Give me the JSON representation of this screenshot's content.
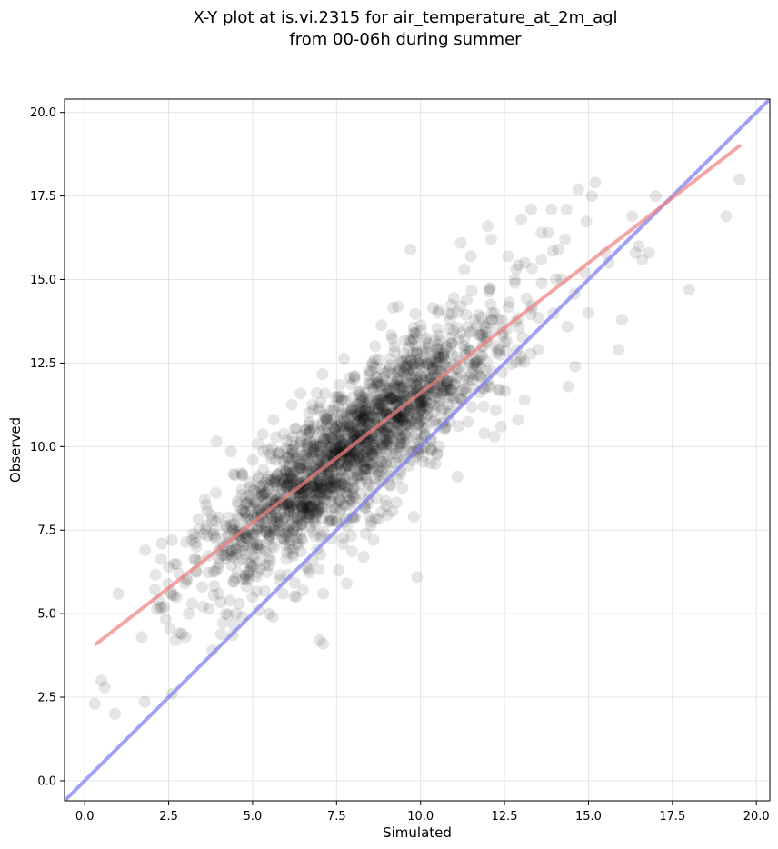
{
  "chart_data": {
    "type": "scatter",
    "title_lines": [
      "X-Y plot at is.vi.2315 for air_temperature_at_2m_agl",
      "from 00-06h during summer"
    ],
    "xlabel": "Simulated",
    "ylabel": "Observed",
    "xlim": [
      -0.6,
      20.4
    ],
    "ylim": [
      -0.6,
      20.4
    ],
    "x_ticks": [
      0.0,
      2.5,
      5.0,
      7.5,
      10.0,
      12.5,
      15.0,
      17.5,
      20.0
    ],
    "y_ticks": [
      0.0,
      2.5,
      5.0,
      7.5,
      10.0,
      12.5,
      15.0,
      17.5,
      20.0
    ],
    "x_tick_labels": [
      "0.0",
      "2.5",
      "5.0",
      "7.5",
      "10.0",
      "12.5",
      "15.0",
      "17.5",
      "20.0"
    ],
    "y_tick_labels": [
      "0.0",
      "2.5",
      "5.0",
      "7.5",
      "10.0",
      "12.5",
      "15.0",
      "17.5",
      "20.0"
    ],
    "grid": true,
    "point_color": "#000000",
    "point_opacity": 0.1,
    "fit_line": {
      "x": [
        0.35,
        19.5
      ],
      "y": [
        4.1,
        19.0
      ],
      "color": "#f08080"
    },
    "identity_line": {
      "x": [
        -0.6,
        20.4
      ],
      "y": [
        -0.6,
        20.4
      ],
      "color": "#8080f0"
    },
    "points": {
      "x": [
        0.3,
        0.5,
        0.6,
        0.9,
        1.0,
        1.7,
        1.8,
        2.2,
        2.3,
        2.5,
        2.6,
        2.7,
        2.8,
        2.9,
        3.0,
        3.1,
        3.2,
        3.2,
        3.3,
        3.8,
        4.0,
        4.0,
        4.2,
        4.4,
        4.6,
        4.7,
        5.0,
        5.2,
        5.3,
        5.5,
        5.6,
        5.8,
        5.9,
        6.2,
        6.3,
        6.5,
        6.6,
        7.0,
        7.1,
        7.1,
        7.8,
        8.3,
        8.6,
        9.7,
        9.9,
        10.3,
        10.5,
        10.7,
        11.1,
        11.2,
        11.3,
        11.5,
        11.9,
        12.0,
        12.1,
        12.2,
        12.4,
        12.6,
        12.9,
        13.0,
        13.1,
        13.1,
        13.3,
        13.5,
        13.6,
        13.8,
        13.9,
        14.1,
        14.3,
        14.4,
        14.6,
        14.7,
        15.0,
        15.1,
        15.2,
        15.6,
        15.9,
        16.0,
        16.3,
        16.4,
        16.5,
        16.6,
        16.8,
        17.0,
        18.0,
        19.1,
        19.5,
        2.6,
        9.8,
        7.1,
        3.5,
        3.3,
        4.7,
        6.8,
        8.9,
        10.2,
        12.2,
        14.9,
        15.5,
        11.2,
        12.8,
        13.6,
        9.5
      ],
      "y": [
        2.3,
        3.0,
        2.8,
        2.0,
        5.6,
        4.3,
        6.9,
        5.4,
        7.1,
        6.4,
        2.6,
        4.2,
        6.2,
        4.4,
        4.3,
        5.0,
        5.3,
        7.2,
        6.6,
        3.9,
        5.6,
        6.5,
        5.0,
        6.7,
        5.3,
        4.9,
        5.5,
        5.1,
        6.9,
        5.0,
        4.9,
        6.0,
        5.6,
        6.8,
        5.5,
        5.7,
        6.4,
        4.2,
        4.1,
        5.6,
        5.9,
        6.7,
        7.2,
        15.9,
        6.1,
        9.5,
        9.8,
        10.5,
        9.1,
        16.1,
        15.3,
        15.7,
        10.4,
        16.6,
        16.2,
        10.3,
        10.6,
        15.7,
        10.8,
        16.8,
        11.4,
        15.5,
        17.1,
        12.9,
        16.4,
        16.4,
        17.1,
        15.9,
        16.2,
        11.8,
        12.4,
        17.7,
        14.0,
        17.5,
        17.9,
        15.5,
        12.9,
        13.8,
        16.9,
        15.8,
        16.0,
        15.6,
        15.8,
        17.5,
        14.7,
        16.9,
        18.0,
        7.2,
        7.9,
        9.3,
        5.8,
        7.3,
        8.1,
        8.8,
        11.4,
        12.5,
        14.0,
        15.2,
        15.8,
        14.2,
        15.0,
        15.6,
        12.8
      ]
    },
    "cloud": {
      "n": 1900,
      "center_x": 7.9,
      "center_y": 9.9,
      "sd_x": 2.15,
      "slope": 0.78,
      "sd_resid": 1.0
    }
  }
}
